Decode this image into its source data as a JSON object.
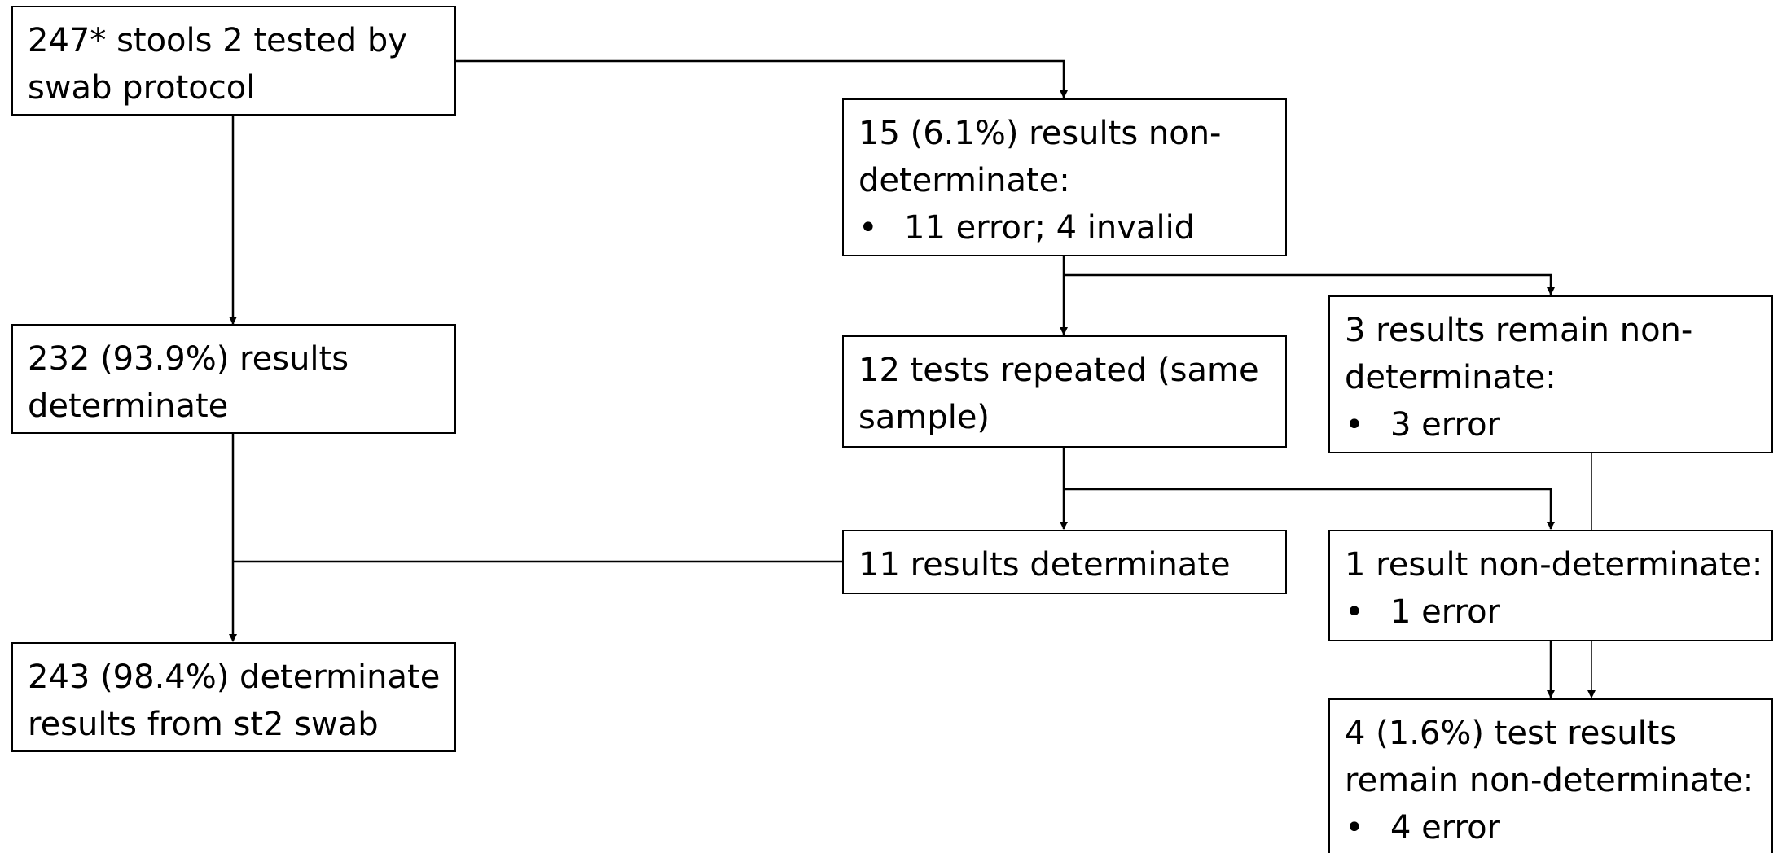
{
  "boxes": {
    "start": {
      "lines": [
        "247* stools 2 tested by",
        "swab protocol"
      ]
    },
    "nondet_initial": {
      "lines": [
        "15 (6.1%) results non-",
        "determinate:"
      ],
      "bullet": "11 error; 4 invalid"
    },
    "determinate_initial": {
      "lines": [
        "232 (93.9%) results",
        "determinate"
      ]
    },
    "repeated": {
      "lines": [
        "12 tests repeated (same",
        "sample)"
      ]
    },
    "remain_nondet": {
      "lines": [
        "3 results remain non-",
        "determinate:"
      ],
      "bullet": "3 error"
    },
    "determinate_repeat": {
      "lines": [
        "11 results determinate"
      ]
    },
    "one_nondet": {
      "lines": [
        "1 result non-determinate:"
      ],
      "bullet": "1 error"
    },
    "final_determinate": {
      "lines": [
        "243 (98.4%) determinate",
        "results from st2 swab"
      ]
    },
    "final_nondet": {
      "lines": [
        "4 (1.6%) test results",
        "remain non-determinate:"
      ],
      "bullet": "4 error"
    }
  },
  "bullet_symbol": "•"
}
